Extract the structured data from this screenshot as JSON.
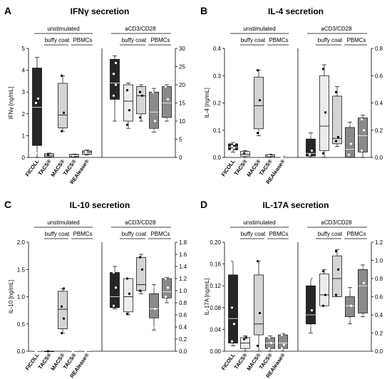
{
  "panels": [
    {
      "letter": "A",
      "title": "IFNγ secretion",
      "ylabel": "IFNγ [ng/mL]",
      "group_unstim": "unstimulated",
      "group_stim": "aCD3/CD28",
      "sub_buffy": "buffy coat",
      "sub_pbmc": "PBMCs",
      "left_axis": {
        "min": 0,
        "max": 5,
        "ticks": [
          "0",
          "1",
          "2",
          "3",
          "4",
          "5"
        ]
      },
      "right_axis": {
        "min": 0,
        "max": 30,
        "ticks": [
          "0",
          "5",
          "10",
          "15",
          "20",
          "25",
          "30"
        ]
      },
      "categories": [
        "FICOLL",
        "TACS®",
        "MACS®",
        "TACS®",
        "REAlease®"
      ],
      "colors": [
        "#262626",
        "#ececec",
        "#d4d4d4",
        "#8a8a8a",
        "#8a8a8a"
      ],
      "unstimulated": [
        {
          "min": 0.0,
          "q1": 0.55,
          "median": 2.3,
          "q3": 4.1,
          "max": 4.6,
          "points": [
            2.5,
            2.7,
            0.2
          ]
        },
        {
          "min": 0.0,
          "q1": 0.03,
          "median": 0.1,
          "q3": 0.18,
          "max": 0.2,
          "points": [
            0.12
          ]
        },
        {
          "min": 1.2,
          "q1": 1.35,
          "median": 1.95,
          "q3": 3.4,
          "max": 3.75,
          "points": [
            1.2,
            2.05,
            3.75
          ]
        },
        {
          "min": 0.0,
          "q1": 0.03,
          "median": 0.08,
          "q3": 0.14,
          "max": 0.15,
          "points": [
            0.08
          ]
        },
        {
          "min": 0.1,
          "q1": 0.14,
          "median": 0.18,
          "q3": 0.3,
          "max": 0.35,
          "points": [
            0.25
          ]
        }
      ],
      "stimulated": [
        {
          "min": 10.0,
          "q1": 16.0,
          "median": 20.5,
          "q3": 27.0,
          "max": 28.0,
          "points": [
            17.0,
            20.0,
            23.0,
            26.0
          ]
        },
        {
          "min": 8.0,
          "q1": 10.0,
          "median": 15.5,
          "q3": 20.0,
          "max": 20.5,
          "points": [
            9.0,
            13.0,
            18.5
          ]
        },
        {
          "min": 10.0,
          "q1": 12.0,
          "median": 17.0,
          "q3": 19.5,
          "max": 20.0,
          "points": [
            11.0,
            17.0,
            18.0
          ]
        },
        {
          "min": 7.0,
          "q1": 8.0,
          "median": 12.5,
          "q3": 18.0,
          "max": 19.0,
          "points": [
            7.5,
            10.0,
            18.0
          ]
        },
        {
          "min": 10.0,
          "q1": 11.0,
          "median": 15.0,
          "q3": 19.5,
          "max": 20.0,
          "points": [
            10.5,
            16.0,
            19.5
          ]
        }
      ]
    },
    {
      "letter": "B",
      "title": "IL-4 secretion",
      "ylabel": "IL-4 [ng/mL]",
      "group_unstim": "unstimulated",
      "group_stim": "aCD3/CD28",
      "sub_buffy": "buffy coat",
      "sub_pbmc": "PBMCs",
      "left_axis": {
        "min": 0,
        "max": 0.4,
        "ticks": [
          "0.0",
          "0.1",
          "0.2",
          "0.3",
          "0.4"
        ]
      },
      "right_axis": {
        "min": 0,
        "max": 0.8,
        "ticks": [
          "0.0",
          "0.2",
          "0.4",
          "0.6",
          "0.8"
        ]
      },
      "categories": [
        "FICOLL",
        "TACS®",
        "MACS®",
        "TACS®",
        "REAlease®"
      ],
      "colors": [
        "#262626",
        "#ececec",
        "#d4d4d4",
        "#8a8a8a",
        "#8a8a8a"
      ],
      "unstimulated": [
        {
          "min": 0.02,
          "q1": 0.028,
          "median": 0.038,
          "q3": 0.05,
          "max": 0.055,
          "points": [
            0.03,
            0.035,
            0.042,
            0.05
          ]
        },
        {
          "min": 0.0,
          "q1": 0.005,
          "median": 0.012,
          "q3": 0.022,
          "max": 0.025,
          "points": [
            0.015
          ]
        },
        {
          "min": 0.08,
          "q1": 0.105,
          "median": 0.19,
          "q3": 0.295,
          "max": 0.32,
          "points": [
            0.09,
            0.21,
            0.32
          ]
        },
        {
          "min": 0.0,
          "q1": 0.003,
          "median": 0.006,
          "q3": 0.01,
          "max": 0.012,
          "points": [
            0.007
          ]
        },
        {
          "min": 0.0,
          "q1": 0.0,
          "median": 0.001,
          "q3": 0.002,
          "max": 0.003,
          "points": [
            0.001
          ]
        }
      ],
      "stimulated": [
        {
          "min": 0.0,
          "q1": 0.01,
          "median": 0.03,
          "q3": 0.135,
          "max": 0.18,
          "points": [
            0.02,
            0.05,
            0.16
          ]
        },
        {
          "min": 0.0,
          "q1": 0.05,
          "median": 0.23,
          "q3": 0.6,
          "max": 0.68,
          "points": [
            0.03,
            0.33,
            0.65
          ]
        },
        {
          "min": 0.08,
          "q1": 0.1,
          "median": 0.14,
          "q3": 0.45,
          "max": 0.52,
          "points": [
            0.12,
            0.15,
            0.48
          ]
        },
        {
          "min": 0.0,
          "q1": 0.0,
          "median": 0.06,
          "q3": 0.22,
          "max": 0.26,
          "points": [
            0.02,
            0.1,
            0.24
          ]
        },
        {
          "min": 0.0,
          "q1": 0.04,
          "median": 0.16,
          "q3": 0.29,
          "max": 0.31,
          "points": [
            0.05,
            0.2,
            0.28
          ]
        }
      ]
    },
    {
      "letter": "C",
      "title": "IL-10 secretion",
      "ylabel": "IL-10 [ng/mL]",
      "group_unstim": "unstimulated",
      "group_stim": "aCD3/CD28",
      "sub_buffy": "buffy coat",
      "sub_pbmc": "PBMCs",
      "left_axis": {
        "min": 0,
        "max": 2.0,
        "ticks": [
          "0.0",
          "0.5",
          "1.0",
          "1.5",
          "2.0"
        ]
      },
      "right_axis": {
        "min": 0,
        "max": 1.8,
        "ticks": [
          "0.0",
          "0.2",
          "0.4",
          "0.6",
          "0.8",
          "1.0",
          "1.2",
          "1.4",
          "1.6",
          "1.8"
        ]
      },
      "categories": [
        "FICOLL",
        "TACS®",
        "MACS®",
        "TACS®",
        "REAlease®"
      ],
      "colors": [
        "#262626",
        "#ececec",
        "#d4d4d4",
        "#8a8a8a",
        "#8a8a8a"
      ],
      "unstimulated": [
        {
          "min": 0.0,
          "q1": 0.0,
          "median": 0.0,
          "q3": 0.0,
          "max": 0.0,
          "points": [
            0.0
          ]
        },
        {
          "min": 0.0,
          "q1": 0.0,
          "median": 0.0,
          "q3": 0.0,
          "max": 0.0,
          "points": [
            0.0
          ]
        },
        {
          "min": 0.33,
          "q1": 0.41,
          "median": 0.77,
          "q3": 1.1,
          "max": 1.15,
          "points": [
            0.33,
            0.6,
            0.82,
            1.15
          ]
        },
        {
          "min": 0.0,
          "q1": 0.0,
          "median": 0.0,
          "q3": 0.0,
          "max": 0.0,
          "points": [
            0.0
          ]
        },
        {
          "min": 0.0,
          "q1": 0.0,
          "median": 0.0,
          "q3": 0.0,
          "max": 0.0,
          "points": [
            0.0
          ]
        }
      ],
      "stimulated": [
        {
          "min": 0.7,
          "q1": 0.72,
          "median": 0.9,
          "q3": 1.3,
          "max": 1.4,
          "points": [
            0.75,
            1.05,
            1.3
          ]
        },
        {
          "min": 0.6,
          "q1": 0.65,
          "median": 0.9,
          "q3": 1.2,
          "max": 1.2,
          "points": [
            0.62,
            0.95,
            1.2
          ]
        },
        {
          "min": 0.95,
          "q1": 1.0,
          "median": 1.1,
          "q3": 1.55,
          "max": 1.6,
          "points": [
            1.0,
            1.35,
            1.55
          ]
        },
        {
          "min": 0.35,
          "q1": 0.55,
          "median": 0.7,
          "q3": 0.95,
          "max": 1.1,
          "points": [
            0.4,
            0.7,
            1.05
          ]
        },
        {
          "min": 0.8,
          "q1": 0.88,
          "median": 0.98,
          "q3": 1.2,
          "max": 1.22,
          "points": [
            0.9,
            1.05,
            1.2
          ]
        }
      ]
    },
    {
      "letter": "D",
      "title": "IL-17A secretion",
      "ylabel": "IL-17A [ng/mL]",
      "group_unstim": "unstimulated",
      "group_stim": "aCD3/CD28",
      "sub_buffy": "buffy coat",
      "sub_pbmc": "PBMCs",
      "left_axis": {
        "min": 0,
        "max": 0.2,
        "ticks": [
          "0.00",
          "0.04",
          "0.08",
          "0.12",
          "0.16",
          "0.20"
        ]
      },
      "right_axis": {
        "min": 0,
        "max": 1.2,
        "ticks": [
          "0.0",
          "0.2",
          "0.4",
          "0.6",
          "0.8",
          "1.0",
          "1.2"
        ]
      },
      "categories": [
        "FICOLL",
        "TACS®",
        "MACS®",
        "TACS®",
        "REAlease®"
      ],
      "colors": [
        "#262626",
        "#ececec",
        "#d4d4d4",
        "#8a8a8a",
        "#8a8a8a"
      ],
      "unstimulated": [
        {
          "min": 0.01,
          "q1": 0.015,
          "median": 0.06,
          "q3": 0.14,
          "max": 0.165,
          "points": [
            0.018,
            0.05,
            0.08,
            0.165
          ]
        },
        {
          "min": 0.0,
          "q1": 0.005,
          "median": 0.015,
          "q3": 0.025,
          "max": 0.028,
          "points": [
            0.022,
            0.025
          ]
        },
        {
          "min": 0.0,
          "q1": 0.03,
          "median": 0.05,
          "q3": 0.14,
          "max": 0.165,
          "points": [
            0.01,
            0.07,
            0.165
          ]
        },
        {
          "min": 0.0,
          "q1": 0.005,
          "median": 0.015,
          "q3": 0.025,
          "max": 0.028,
          "points": [
            0.005,
            0.015,
            0.025
          ]
        },
        {
          "min": 0.0,
          "q1": 0.005,
          "median": 0.015,
          "q3": 0.03,
          "max": 0.032,
          "points": [
            0.005,
            0.012,
            0.03
          ]
        }
      ],
      "stimulated": [
        {
          "min": 0.2,
          "q1": 0.3,
          "median": 0.4,
          "q3": 0.72,
          "max": 0.8,
          "points": [
            0.28,
            0.45,
            0.8
          ]
        },
        {
          "min": 0.5,
          "q1": 0.5,
          "median": 0.62,
          "q3": 0.85,
          "max": 0.9,
          "points": [
            0.5,
            0.62,
            0.88
          ]
        },
        {
          "min": 0.6,
          "q1": 0.6,
          "median": 0.8,
          "q3": 1.05,
          "max": 1.12,
          "points": [
            0.62,
            0.9,
            1.1
          ]
        },
        {
          "min": 0.3,
          "q1": 0.38,
          "median": 0.5,
          "q3": 0.6,
          "max": 0.7,
          "points": [
            0.35,
            0.5,
            0.68
          ]
        },
        {
          "min": 0.38,
          "q1": 0.42,
          "median": 0.72,
          "q3": 0.9,
          "max": 0.95,
          "points": [
            0.4,
            0.75,
            0.92
          ]
        }
      ]
    }
  ]
}
